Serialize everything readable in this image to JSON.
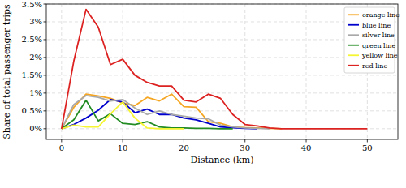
{
  "chart_data": {
    "type": "line",
    "x_label": "Distance (km)",
    "y_label": "Share of total passenger trips",
    "x": [
      0,
      2,
      4,
      6,
      8,
      10,
      12,
      14,
      16,
      18,
      20,
      22,
      24,
      26,
      28,
      30,
      32,
      34,
      36,
      38,
      40,
      42,
      44,
      46,
      48,
      50
    ],
    "xlim": [
      -2.5,
      55
    ],
    "xticks": [
      0,
      10,
      20,
      30,
      40,
      50
    ],
    "ylim": [
      -0.3,
      3.5
    ],
    "yticks": [
      {
        "value": 0,
        "label": "0%"
      },
      {
        "value": 0.5,
        "label": "0.5%"
      },
      {
        "value": 1,
        "label": "1%"
      },
      {
        "value": 1.5,
        "label": "1.5%"
      },
      {
        "value": 2,
        "label": "2%"
      },
      {
        "value": 2.5,
        "label": "2.5%"
      },
      {
        "value": 3,
        "label": "3%"
      },
      {
        "value": 3.5,
        "label": "3.5%"
      }
    ],
    "grid": true,
    "legend": "upper right",
    "series": [
      {
        "name": "orange line",
        "color": "#f5a623",
        "values": [
          0,
          0.6,
          0.97,
          0.92,
          0.85,
          0.72,
          0.65,
          0.88,
          0.78,
          0.97,
          0.62,
          0.6,
          0.2,
          0.15,
          0.05,
          0.03,
          0.02,
          0.01,
          0,
          null,
          null,
          null,
          null,
          null,
          null,
          null
        ]
      },
      {
        "name": "blue line",
        "color": "#0000cd",
        "values": [
          0,
          0.12,
          0.3,
          0.52,
          0.82,
          0.75,
          0.45,
          0.55,
          0.4,
          0.4,
          0.3,
          0.25,
          0.15,
          0.05,
          0.03,
          0.01,
          0,
          null,
          null,
          null,
          null,
          null,
          null,
          null,
          null,
          null
        ]
      },
      {
        "name": "silver line",
        "color": "#a9a9a9",
        "values": [
          0,
          0.68,
          0.93,
          0.88,
          0.78,
          0.82,
          0.58,
          0.4,
          0.5,
          0.4,
          0.35,
          0.3,
          0.28,
          0.1,
          0.05,
          0.02,
          0.01,
          0,
          null,
          null,
          null,
          null,
          null,
          null,
          null,
          null
        ]
      },
      {
        "name": "green line",
        "color": "#228b22",
        "values": [
          0,
          0.25,
          0.8,
          0.22,
          0.42,
          0.15,
          0.12,
          0.2,
          0.05,
          0.02,
          0.02,
          0.01,
          0.01,
          0,
          0,
          null,
          null,
          null,
          null,
          null,
          null,
          null,
          null,
          null,
          null,
          null
        ]
      },
      {
        "name": "yellow line",
        "color": "#f5f532",
        "values": [
          0,
          0.1,
          0.05,
          0.05,
          0.42,
          0.75,
          0.3,
          0.02,
          0,
          0,
          0,
          null,
          null,
          null,
          null,
          null,
          null,
          null,
          null,
          null,
          null,
          null,
          null,
          null,
          null,
          null
        ]
      },
      {
        "name": "red line",
        "color": "#dd2222",
        "values": [
          0,
          1.9,
          3.35,
          2.85,
          1.8,
          1.95,
          1.5,
          1.3,
          1.2,
          1.2,
          0.8,
          0.75,
          0.97,
          0.85,
          0.4,
          0.12,
          0.08,
          0.02,
          0,
          0,
          0,
          0,
          0,
          0,
          0,
          0
        ]
      }
    ]
  }
}
